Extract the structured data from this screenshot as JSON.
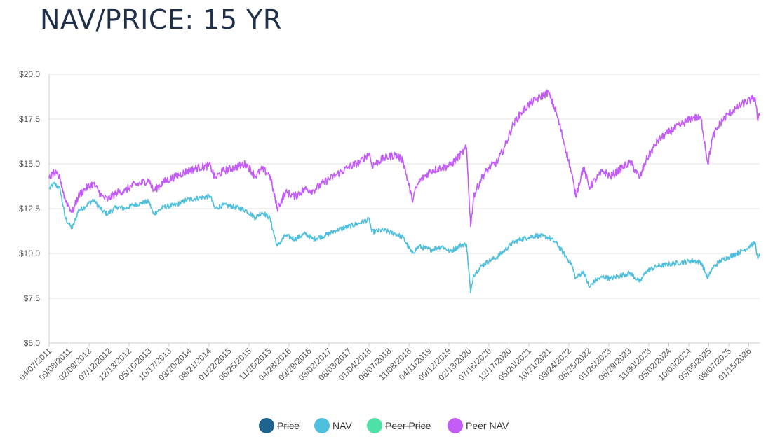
{
  "title": "NAV/PRICE: 15 YR",
  "chart_data": {
    "type": "line",
    "title": "NAV/PRICE: 15 YR",
    "x_tick_labels": [
      "04/07/2011",
      "09/08/2011",
      "02/09/2012",
      "07/12/2012",
      "12/13/2012",
      "05/16/2013",
      "10/17/2013",
      "03/20/2014",
      "08/21/2014",
      "01/22/2015",
      "06/25/2015",
      "11/25/2015",
      "04/28/2016",
      "09/29/2016",
      "03/02/2017",
      "08/03/2017",
      "01/04/2018",
      "06/07/2018",
      "11/08/2018",
      "04/11/2019",
      "09/12/2019",
      "02/13/2020",
      "07/16/2020",
      "12/17/2020",
      "05/20/2021",
      "10/21/2021",
      "03/24/2022",
      "08/25/2022",
      "01/26/2023",
      "06/29/2023",
      "11/30/2023",
      "05/02/2024",
      "10/03/2024",
      "03/06/2025",
      "08/07/2025",
      "01/15/2026"
    ],
    "y_tick_labels": [
      "$5.0",
      "$7.5",
      "$10.0",
      "$12.5",
      "$15.0",
      "$17.5",
      "$20.0"
    ],
    "y_ticks": [
      5,
      7.5,
      10,
      12.5,
      15,
      17.5,
      20
    ],
    "ylim": [
      5,
      20
    ],
    "x_range": [
      "2011-04-07",
      "2026-05-15"
    ],
    "grid": true,
    "legend_position": "bottom",
    "series": [
      {
        "name": "Price",
        "color": "#1f6391",
        "hidden": true,
        "x": [],
        "values": []
      },
      {
        "name": "NAV",
        "color": "#4ec0de",
        "hidden": false,
        "x": [
          "2011-04-07",
          "2011-05-15",
          "2011-07-01",
          "2011-08-10",
          "2011-09-10",
          "2011-10-05",
          "2011-11-20",
          "2012-01-10",
          "2012-03-15",
          "2012-05-20",
          "2012-07-01",
          "2012-09-15",
          "2012-11-15",
          "2013-01-15",
          "2013-03-15",
          "2013-05-20",
          "2013-06-25",
          "2013-09-15",
          "2013-12-15",
          "2014-03-15",
          "2014-06-15",
          "2014-09-10",
          "2014-10-15",
          "2014-12-15",
          "2015-03-15",
          "2015-06-15",
          "2015-08-25",
          "2015-10-15",
          "2015-12-15",
          "2016-02-11",
          "2016-04-15",
          "2016-06-27",
          "2016-09-15",
          "2016-11-15",
          "2017-02-15",
          "2017-05-15",
          "2017-08-15",
          "2017-11-15",
          "2018-01-26",
          "2018-02-15",
          "2018-05-15",
          "2018-08-15",
          "2018-10-15",
          "2018-12-24",
          "2019-02-15",
          "2019-05-15",
          "2019-08-15",
          "2019-10-15",
          "2020-01-15",
          "2020-02-20",
          "2020-03-23",
          "2020-04-15",
          "2020-06-15",
          "2020-08-15",
          "2020-10-15",
          "2020-12-15",
          "2021-02-15",
          "2021-04-15",
          "2021-06-15",
          "2021-08-15",
          "2021-11-15",
          "2022-01-15",
          "2022-03-15",
          "2022-05-15",
          "2022-06-16",
          "2022-08-15",
          "2022-09-30",
          "2022-11-15",
          "2023-01-15",
          "2023-03-15",
          "2023-06-15",
          "2023-08-15",
          "2023-10-27",
          "2023-12-15",
          "2024-03-15",
          "2024-06-15",
          "2024-09-15",
          "2024-12-15",
          "2025-02-15",
          "2025-04-08",
          "2025-05-15",
          "2025-07-15",
          "2025-09-15",
          "2025-11-15",
          "2026-01-15",
          "2026-03-15",
          "2026-04-10",
          "2026-05-01",
          "2026-05-15"
        ],
        "values": [
          13.6,
          13.9,
          13.6,
          12.0,
          11.6,
          11.4,
          12.4,
          12.6,
          13.0,
          12.4,
          12.2,
          12.6,
          12.5,
          12.7,
          12.8,
          12.9,
          12.2,
          12.6,
          12.7,
          13.0,
          13.1,
          13.2,
          12.5,
          12.7,
          12.6,
          12.4,
          12.0,
          12.3,
          12.0,
          10.4,
          11.0,
          10.8,
          11.1,
          10.8,
          11.0,
          11.3,
          11.5,
          11.7,
          11.9,
          11.2,
          11.3,
          11.1,
          10.9,
          10.0,
          10.4,
          10.2,
          10.4,
          10.1,
          10.5,
          10.5,
          7.8,
          8.8,
          9.3,
          9.6,
          9.8,
          10.2,
          10.6,
          10.8,
          10.9,
          11.0,
          10.9,
          10.6,
          10.0,
          9.4,
          8.6,
          9.0,
          8.1,
          8.5,
          8.7,
          8.6,
          8.8,
          8.9,
          8.4,
          9.0,
          9.3,
          9.4,
          9.5,
          9.6,
          9.5,
          8.6,
          9.2,
          9.6,
          9.8,
          10.0,
          10.2,
          10.5,
          10.6,
          9.7,
          9.9
        ]
      },
      {
        "name": "Peer Price",
        "color": "#4fe0a8",
        "hidden": true,
        "x": [],
        "values": []
      },
      {
        "name": "Peer NAV",
        "color": "#c45cf7",
        "hidden": false,
        "x": [
          "2011-04-07",
          "2011-05-15",
          "2011-07-01",
          "2011-08-10",
          "2011-09-10",
          "2011-10-05",
          "2011-11-20",
          "2012-01-10",
          "2012-03-15",
          "2012-05-20",
          "2012-07-01",
          "2012-09-15",
          "2012-11-15",
          "2013-01-15",
          "2013-03-15",
          "2013-05-20",
          "2013-06-25",
          "2013-09-15",
          "2013-12-15",
          "2014-03-15",
          "2014-06-15",
          "2014-09-10",
          "2014-10-15",
          "2014-12-15",
          "2015-03-15",
          "2015-06-15",
          "2015-08-25",
          "2015-10-15",
          "2015-12-15",
          "2016-02-11",
          "2016-04-15",
          "2016-06-27",
          "2016-09-15",
          "2016-11-15",
          "2017-02-15",
          "2017-05-15",
          "2017-08-15",
          "2017-11-15",
          "2018-01-26",
          "2018-02-15",
          "2018-05-15",
          "2018-08-15",
          "2018-10-15",
          "2018-12-24",
          "2019-02-15",
          "2019-05-15",
          "2019-08-15",
          "2019-10-15",
          "2020-01-15",
          "2020-02-20",
          "2020-03-23",
          "2020-04-15",
          "2020-06-15",
          "2020-08-15",
          "2020-10-15",
          "2020-12-15",
          "2021-02-15",
          "2021-04-15",
          "2021-06-15",
          "2021-08-15",
          "2021-11-15",
          "2022-01-15",
          "2022-03-15",
          "2022-05-15",
          "2022-06-16",
          "2022-08-15",
          "2022-09-30",
          "2022-11-15",
          "2023-01-15",
          "2023-03-15",
          "2023-06-15",
          "2023-08-15",
          "2023-10-27",
          "2023-12-15",
          "2024-03-15",
          "2024-06-15",
          "2024-09-15",
          "2024-12-15",
          "2025-02-15",
          "2025-04-08",
          "2025-05-15",
          "2025-07-15",
          "2025-09-15",
          "2025-11-15",
          "2026-01-15",
          "2026-03-15",
          "2026-04-10",
          "2026-05-01",
          "2026-05-15"
        ],
        "values": [
          14.2,
          14.5,
          14.2,
          13.0,
          12.6,
          12.3,
          13.2,
          13.6,
          13.9,
          13.2,
          13.0,
          13.4,
          13.5,
          13.8,
          13.9,
          14.1,
          13.5,
          14.0,
          14.3,
          14.6,
          14.8,
          14.9,
          14.2,
          14.6,
          14.8,
          15.0,
          14.3,
          14.7,
          14.4,
          12.5,
          13.4,
          13.2,
          13.6,
          13.5,
          14.0,
          14.4,
          14.8,
          15.1,
          15.6,
          14.9,
          15.3,
          15.5,
          15.2,
          13.0,
          14.0,
          14.6,
          14.8,
          14.9,
          15.6,
          15.9,
          11.5,
          13.2,
          14.2,
          14.8,
          15.1,
          16.0,
          17.2,
          17.8,
          18.3,
          18.6,
          19.0,
          17.9,
          16.3,
          14.5,
          13.2,
          14.8,
          13.7,
          14.1,
          14.6,
          14.3,
          14.8,
          15.1,
          14.2,
          15.2,
          16.3,
          16.8,
          17.2,
          17.6,
          17.5,
          15.0,
          16.5,
          17.3,
          17.8,
          18.1,
          18.4,
          18.6,
          18.7,
          17.4,
          17.7
        ]
      }
    ]
  }
}
